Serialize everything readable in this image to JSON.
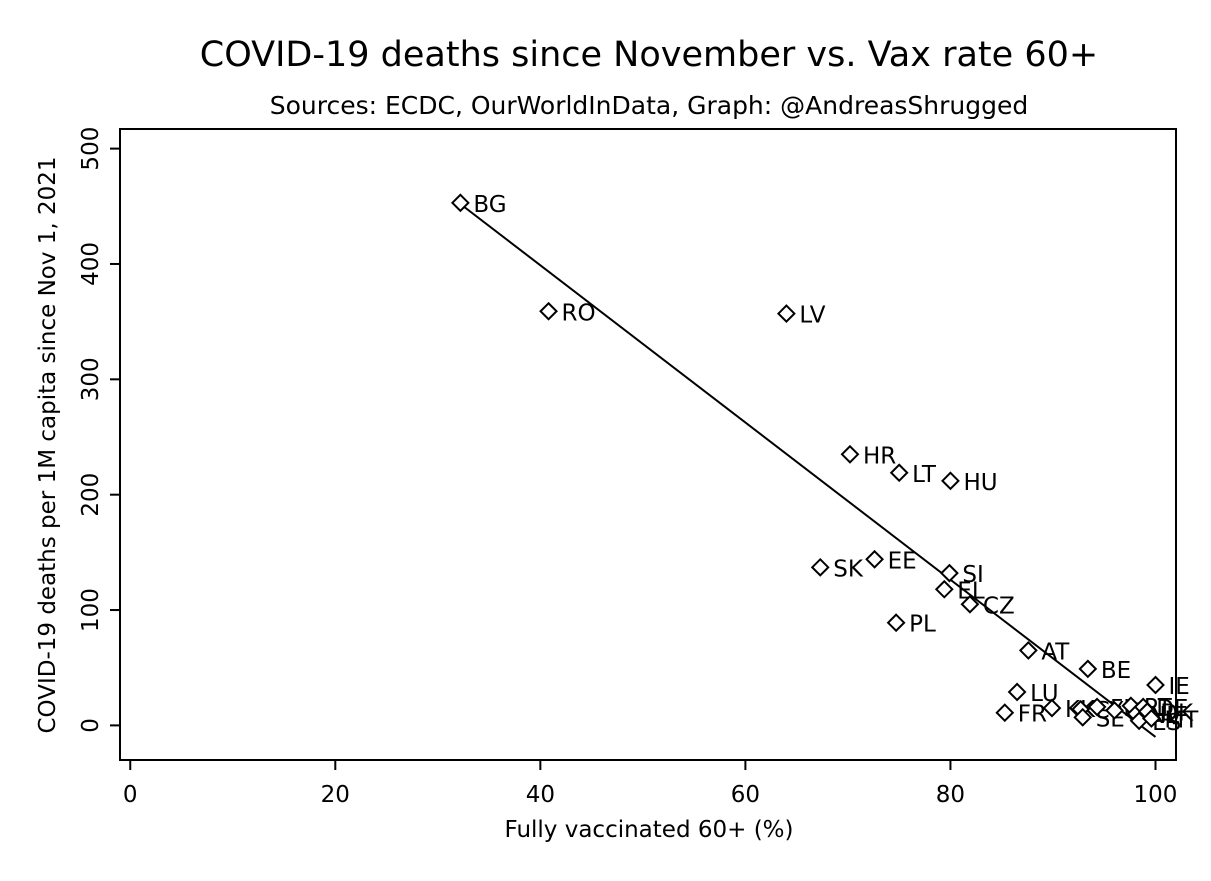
{
  "chart_data": {
    "type": "scatter",
    "title": "COVID-19 deaths since November vs. Vax rate 60+",
    "subtitle": "Sources: ECDC, OurWorldInData, Graph: @AndreasShrugged",
    "xlabel": "Fully vaccinated 60+ (%)",
    "ylabel": "COVID-19 deaths per 1M capita since Nov 1, 2021",
    "xlim": [
      -1,
      102
    ],
    "ylim": [
      -30,
      517
    ],
    "xticks": [
      0,
      20,
      40,
      60,
      80,
      100
    ],
    "yticks": [
      0,
      100,
      200,
      300,
      400,
      500
    ],
    "grid": false,
    "marker": "hollow-diamond",
    "points": [
      {
        "label": "BG",
        "x": 32.2,
        "y": 453
      },
      {
        "label": "RO",
        "x": 40.8,
        "y": 359
      },
      {
        "label": "LV",
        "x": 64.0,
        "y": 357
      },
      {
        "label": "HR",
        "x": 70.2,
        "y": 235
      },
      {
        "label": "LT",
        "x": 75.0,
        "y": 219
      },
      {
        "label": "HU",
        "x": 80.0,
        "y": 212
      },
      {
        "label": "SK",
        "x": 67.3,
        "y": 137
      },
      {
        "label": "EE",
        "x": 72.6,
        "y": 144
      },
      {
        "label": "SI",
        "x": 79.9,
        "y": 132
      },
      {
        "label": "EL",
        "x": 79.4,
        "y": 118
      },
      {
        "label": "CZ",
        "x": 81.9,
        "y": 105
      },
      {
        "label": "PL",
        "x": 74.7,
        "y": 89
      },
      {
        "label": "AT",
        "x": 87.6,
        "y": 65
      },
      {
        "label": "BE",
        "x": 93.4,
        "y": 49
      },
      {
        "label": "IE",
        "x": 100.0,
        "y": 35
      },
      {
        "label": "LU",
        "x": 86.5,
        "y": 29
      },
      {
        "label": "FR",
        "x": 85.3,
        "y": 11
      },
      {
        "label": "KK",
        "x": 89.9,
        "y": 15
      },
      {
        "label": "CY",
        "x": 92.7,
        "y": 14
      },
      {
        "label": "SE",
        "x": 92.9,
        "y": 7
      },
      {
        "label": "FI",
        "x": 94.3,
        "y": 16
      },
      {
        "label": "IT",
        "x": 96.0,
        "y": 13
      },
      {
        "label": "PT",
        "x": 97.6,
        "y": 17
      },
      {
        "label": "NL",
        "x": 98.1,
        "y": 10
      },
      {
        "label": "DE",
        "x": 98.8,
        "y": 16
      },
      {
        "label": "DK",
        "x": 99.2,
        "y": 12
      },
      {
        "label": "ES",
        "x": 98.4,
        "y": 4
      },
      {
        "label": "MT",
        "x": 99.6,
        "y": 6
      }
    ],
    "fit_line": {
      "x": [
        32.2,
        100.0
      ],
      "y": [
        452,
        -10
      ]
    }
  }
}
